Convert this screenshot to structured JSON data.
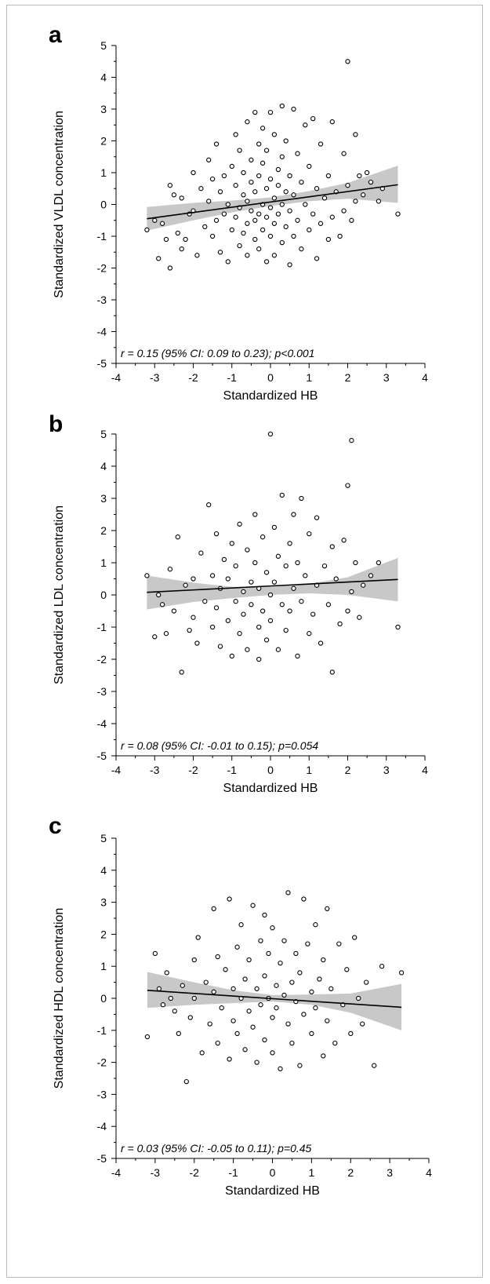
{
  "chart_data": [
    {
      "type": "scatter",
      "panel": "a",
      "xlabel": "Standardized HB",
      "ylabel": "Standardized VLDL concentration",
      "annotation": "r = 0.15 (95% CI: 0.09 to 0.23); p<0.001",
      "xlim": [
        -4,
        4
      ],
      "ylim": [
        -5,
        5
      ],
      "xticks": [
        -4,
        -3,
        -2,
        -1,
        0,
        1,
        2,
        3,
        4
      ],
      "yticks": [
        -5,
        -4,
        -3,
        -2,
        -1,
        0,
        1,
        2,
        3,
        4,
        5
      ],
      "fit": {
        "x": [
          -3.2,
          3.3
        ],
        "y": [
          -0.45,
          0.62
        ]
      },
      "ci": {
        "x": [
          -3.2,
          -2,
          -1,
          0,
          1,
          2,
          3.3
        ],
        "lower": [
          -0.82,
          -0.5,
          -0.25,
          -0.05,
          0.1,
          0.18,
          0.05
        ],
        "upper": [
          -0.08,
          0.05,
          0.12,
          0.22,
          0.42,
          0.68,
          1.22
        ]
      },
      "points": [
        [
          -3.2,
          -0.8
        ],
        [
          -3.0,
          -0.5
        ],
        [
          -2.9,
          -1.7
        ],
        [
          -2.8,
          -0.6
        ],
        [
          -2.7,
          -1.1
        ],
        [
          -2.6,
          -2.0
        ],
        [
          -2.6,
          0.6
        ],
        [
          -2.5,
          0.3
        ],
        [
          -2.4,
          -0.9
        ],
        [
          -2.3,
          0.2
        ],
        [
          -2.3,
          -1.4
        ],
        [
          -2.2,
          -1.1
        ],
        [
          -2.1,
          -0.3
        ],
        [
          -2.0,
          1.0
        ],
        [
          -2.0,
          -0.2
        ],
        [
          -1.9,
          -1.6
        ],
        [
          -1.8,
          0.5
        ],
        [
          -1.7,
          -0.7
        ],
        [
          -1.6,
          1.4
        ],
        [
          -1.6,
          0.1
        ],
        [
          -1.5,
          -1.0
        ],
        [
          -1.5,
          0.8
        ],
        [
          -1.4,
          1.9
        ],
        [
          -1.4,
          -0.5
        ],
        [
          -1.3,
          -1.5
        ],
        [
          -1.3,
          0.4
        ],
        [
          -1.2,
          -0.3
        ],
        [
          -1.2,
          0.9
        ],
        [
          -1.1,
          -1.8
        ],
        [
          -1.1,
          0.0
        ],
        [
          -1.0,
          1.2
        ],
        [
          -1.0,
          -0.8
        ],
        [
          -0.9,
          2.2
        ],
        [
          -0.9,
          -0.4
        ],
        [
          -0.9,
          0.6
        ],
        [
          -0.8,
          -1.3
        ],
        [
          -0.8,
          1.7
        ],
        [
          -0.8,
          -0.1
        ],
        [
          -0.7,
          0.3
        ],
        [
          -0.7,
          -0.9
        ],
        [
          -0.7,
          1.0
        ],
        [
          -0.6,
          2.6
        ],
        [
          -0.6,
          -0.6
        ],
        [
          -0.6,
          0.1
        ],
        [
          -0.6,
          -1.6
        ],
        [
          -0.5,
          1.4
        ],
        [
          -0.5,
          -0.2
        ],
        [
          -0.5,
          0.7
        ],
        [
          -0.4,
          2.9
        ],
        [
          -0.4,
          -1.1
        ],
        [
          -0.4,
          0.4
        ],
        [
          -0.4,
          -0.5
        ],
        [
          -0.3,
          1.9
        ],
        [
          -0.3,
          -0.3
        ],
        [
          -0.3,
          0.9
        ],
        [
          -0.3,
          -1.4
        ],
        [
          -0.2,
          2.4
        ],
        [
          -0.2,
          0.0
        ],
        [
          -0.2,
          -0.8
        ],
        [
          -0.2,
          1.3
        ],
        [
          -0.1,
          -1.8
        ],
        [
          -0.1,
          0.5
        ],
        [
          -0.1,
          -0.4
        ],
        [
          -0.1,
          1.7
        ],
        [
          0.0,
          2.9
        ],
        [
          0.0,
          -0.1
        ],
        [
          0.0,
          -1.0
        ],
        [
          0.0,
          0.8
        ],
        [
          0.1,
          2.2
        ],
        [
          0.1,
          0.2
        ],
        [
          0.1,
          -0.6
        ],
        [
          0.1,
          -1.6
        ],
        [
          0.2,
          1.1
        ],
        [
          0.2,
          -0.3
        ],
        [
          0.2,
          0.6
        ],
        [
          0.3,
          3.1
        ],
        [
          0.3,
          -1.2
        ],
        [
          0.3,
          0.0
        ],
        [
          0.3,
          1.5
        ],
        [
          0.4,
          -0.7
        ],
        [
          0.4,
          0.4
        ],
        [
          0.4,
          2.0
        ],
        [
          0.5,
          -1.9
        ],
        [
          0.5,
          0.9
        ],
        [
          0.5,
          -0.2
        ],
        [
          0.6,
          3.0
        ],
        [
          0.6,
          0.3
        ],
        [
          0.6,
          -1.0
        ],
        [
          0.7,
          1.6
        ],
        [
          0.7,
          -0.5
        ],
        [
          0.8,
          0.7
        ],
        [
          0.8,
          -1.4
        ],
        [
          0.9,
          2.5
        ],
        [
          0.9,
          0.0
        ],
        [
          1.0,
          -0.8
        ],
        [
          1.0,
          1.2
        ],
        [
          1.1,
          2.7
        ],
        [
          1.1,
          -0.3
        ],
        [
          1.2,
          0.5
        ],
        [
          1.2,
          -1.7
        ],
        [
          1.3,
          1.9
        ],
        [
          1.3,
          -0.6
        ],
        [
          1.4,
          0.2
        ],
        [
          1.5,
          -1.1
        ],
        [
          1.5,
          0.9
        ],
        [
          1.6,
          2.6
        ],
        [
          1.6,
          -0.4
        ],
        [
          1.7,
          0.4
        ],
        [
          1.8,
          -1.0
        ],
        [
          1.9,
          1.6
        ],
        [
          1.9,
          -0.2
        ],
        [
          2.0,
          0.6
        ],
        [
          2.0,
          4.5
        ],
        [
          2.1,
          -0.5
        ],
        [
          2.2,
          2.2
        ],
        [
          2.2,
          0.1
        ],
        [
          2.3,
          0.9
        ],
        [
          2.4,
          0.3
        ],
        [
          2.5,
          1.0
        ],
        [
          2.6,
          0.7
        ],
        [
          2.8,
          0.1
        ],
        [
          2.9,
          0.5
        ],
        [
          3.3,
          -0.3
        ]
      ]
    },
    {
      "type": "scatter",
      "panel": "b",
      "xlabel": "Standardized HB",
      "ylabel": "Standardized LDL concentration",
      "annotation": "r = 0.08 (95% CI: -0.01 to 0.15); p=0.054",
      "xlim": [
        -4,
        4
      ],
      "ylim": [
        -5,
        5
      ],
      "xticks": [
        -4,
        -3,
        -2,
        -1,
        0,
        1,
        2,
        3,
        4
      ],
      "yticks": [
        -5,
        -4,
        -3,
        -2,
        -1,
        0,
        1,
        2,
        3,
        4,
        5
      ],
      "fit": {
        "x": [
          -3.2,
          3.3
        ],
        "y": [
          0.08,
          0.48
        ]
      },
      "ci": {
        "x": [
          -3.2,
          -2,
          -1,
          0,
          1,
          2,
          3.3
        ],
        "lower": [
          -0.45,
          -0.22,
          -0.1,
          0.0,
          0.05,
          0.0,
          -0.2
        ],
        "upper": [
          0.6,
          0.38,
          0.25,
          0.25,
          0.35,
          0.55,
          1.15
        ]
      },
      "points": [
        [
          -3.2,
          0.6
        ],
        [
          -3.0,
          -1.3
        ],
        [
          -2.9,
          0.0
        ],
        [
          -2.8,
          -0.3
        ],
        [
          -2.7,
          -1.2
        ],
        [
          -2.6,
          0.8
        ],
        [
          -2.5,
          -0.5
        ],
        [
          -2.4,
          1.8
        ],
        [
          -2.3,
          -2.4
        ],
        [
          -2.2,
          0.3
        ],
        [
          -2.1,
          -1.1
        ],
        [
          -2.0,
          -0.7
        ],
        [
          -2.0,
          0.5
        ],
        [
          -1.9,
          -1.5
        ],
        [
          -1.8,
          1.3
        ],
        [
          -1.7,
          -0.2
        ],
        [
          -1.6,
          2.8
        ],
        [
          -1.5,
          -1.0
        ],
        [
          -1.5,
          0.6
        ],
        [
          -1.4,
          1.9
        ],
        [
          -1.4,
          -0.4
        ],
        [
          -1.3,
          -1.6
        ],
        [
          -1.3,
          0.2
        ],
        [
          -1.2,
          1.1
        ],
        [
          -1.1,
          -0.8
        ],
        [
          -1.1,
          0.5
        ],
        [
          -1.0,
          -1.9
        ],
        [
          -1.0,
          1.6
        ],
        [
          -0.9,
          -0.2
        ],
        [
          -0.9,
          0.9
        ],
        [
          -0.8,
          -1.2
        ],
        [
          -0.8,
          2.2
        ],
        [
          -0.7,
          0.1
        ],
        [
          -0.7,
          -0.6
        ],
        [
          -0.6,
          1.4
        ],
        [
          -0.6,
          -1.7
        ],
        [
          -0.5,
          0.4
        ],
        [
          -0.5,
          -0.3
        ],
        [
          -0.4,
          1.0
        ],
        [
          -0.4,
          2.5
        ],
        [
          -0.3,
          -1.0
        ],
        [
          -0.3,
          0.2
        ],
        [
          -0.3,
          -2.0
        ],
        [
          -0.2,
          1.8
        ],
        [
          -0.2,
          -0.5
        ],
        [
          -0.1,
          0.7
        ],
        [
          -0.1,
          -1.4
        ],
        [
          0.0,
          5.0
        ],
        [
          0.0,
          0.0
        ],
        [
          0.0,
          -0.8
        ],
        [
          0.1,
          2.1
        ],
        [
          0.1,
          0.4
        ],
        [
          0.2,
          -1.7
        ],
        [
          0.2,
          1.2
        ],
        [
          0.3,
          -0.3
        ],
        [
          0.3,
          3.1
        ],
        [
          0.4,
          0.9
        ],
        [
          0.4,
          -1.1
        ],
        [
          0.5,
          1.6
        ],
        [
          0.5,
          -0.5
        ],
        [
          0.6,
          2.5
        ],
        [
          0.6,
          0.2
        ],
        [
          0.7,
          -1.9
        ],
        [
          0.7,
          1.0
        ],
        [
          0.8,
          3.0
        ],
        [
          0.8,
          -0.2
        ],
        [
          0.9,
          0.6
        ],
        [
          1.0,
          -1.2
        ],
        [
          1.0,
          1.9
        ],
        [
          1.1,
          -0.6
        ],
        [
          1.2,
          2.4
        ],
        [
          1.2,
          0.3
        ],
        [
          1.3,
          -1.5
        ],
        [
          1.4,
          0.9
        ],
        [
          1.5,
          -0.3
        ],
        [
          1.6,
          1.5
        ],
        [
          1.6,
          -2.4
        ],
        [
          1.7,
          0.5
        ],
        [
          1.8,
          -0.9
        ],
        [
          1.9,
          1.7
        ],
        [
          2.0,
          3.4
        ],
        [
          2.0,
          -0.5
        ],
        [
          2.1,
          4.8
        ],
        [
          2.1,
          0.1
        ],
        [
          2.2,
          1.0
        ],
        [
          2.3,
          -0.7
        ],
        [
          2.4,
          0.3
        ],
        [
          2.6,
          0.6
        ],
        [
          2.8,
          1.0
        ],
        [
          3.3,
          -1.0
        ]
      ]
    },
    {
      "type": "scatter",
      "panel": "c",
      "xlabel": "Standardized HB",
      "ylabel": "Standardized HDL concentration",
      "annotation": "r = 0.03 (95% CI: -0.05 to 0.11); p=0.45",
      "xlim": [
        -4,
        4
      ],
      "ylim": [
        -5,
        5
      ],
      "xticks": [
        -4,
        -3,
        -2,
        -1,
        0,
        1,
        2,
        3,
        4
      ],
      "yticks": [
        -5,
        -4,
        -3,
        -2,
        -1,
        0,
        1,
        2,
        3,
        4,
        5
      ],
      "fit": {
        "x": [
          -3.2,
          3.3
        ],
        "y": [
          0.25,
          -0.28
        ]
      },
      "ci": {
        "x": [
          -3.2,
          -2,
          -1,
          0,
          1,
          2,
          3.3
        ],
        "lower": [
          -0.3,
          -0.2,
          -0.15,
          -0.1,
          -0.2,
          -0.45,
          -1.0
        ],
        "upper": [
          0.82,
          0.5,
          0.25,
          0.1,
          0.12,
          0.15,
          0.45
        ]
      },
      "points": [
        [
          -3.2,
          -1.2
        ],
        [
          -3.0,
          1.4
        ],
        [
          -2.9,
          0.3
        ],
        [
          -2.8,
          -0.2
        ],
        [
          -2.7,
          0.8
        ],
        [
          -2.6,
          0.0
        ],
        [
          -2.5,
          -0.4
        ],
        [
          -2.4,
          -1.1
        ],
        [
          -2.3,
          0.4
        ],
        [
          -2.2,
          -2.6
        ],
        [
          -2.1,
          -0.6
        ],
        [
          -2.0,
          1.2
        ],
        [
          -2.0,
          0.0
        ],
        [
          -1.9,
          1.9
        ],
        [
          -1.8,
          -1.7
        ],
        [
          -1.7,
          0.5
        ],
        [
          -1.6,
          -0.8
        ],
        [
          -1.5,
          2.8
        ],
        [
          -1.5,
          0.2
        ],
        [
          -1.4,
          -1.4
        ],
        [
          -1.4,
          1.3
        ],
        [
          -1.3,
          -0.3
        ],
        [
          -1.2,
          0.9
        ],
        [
          -1.1,
          -1.9
        ],
        [
          -1.1,
          3.1
        ],
        [
          -1.0,
          0.3
        ],
        [
          -1.0,
          -0.7
        ],
        [
          -0.9,
          1.6
        ],
        [
          -0.9,
          -1.1
        ],
        [
          -0.8,
          0.0
        ],
        [
          -0.8,
          2.3
        ],
        [
          -0.7,
          -1.6
        ],
        [
          -0.7,
          0.6
        ],
        [
          -0.6,
          -0.4
        ],
        [
          -0.6,
          1.2
        ],
        [
          -0.5,
          2.9
        ],
        [
          -0.5,
          -0.9
        ],
        [
          -0.4,
          0.3
        ],
        [
          -0.4,
          -2.0
        ],
        [
          -0.3,
          1.8
        ],
        [
          -0.3,
          -0.2
        ],
        [
          -0.2,
          2.6
        ],
        [
          -0.2,
          0.7
        ],
        [
          -0.2,
          -1.3
        ],
        [
          -0.1,
          0.0
        ],
        [
          -0.1,
          1.4
        ],
        [
          0.0,
          -0.6
        ],
        [
          0.0,
          2.2
        ],
        [
          0.0,
          -1.7
        ],
        [
          0.1,
          0.4
        ],
        [
          0.1,
          -0.3
        ],
        [
          0.2,
          1.1
        ],
        [
          0.2,
          -2.2
        ],
        [
          0.3,
          0.1
        ],
        [
          0.3,
          1.8
        ],
        [
          0.4,
          -0.8
        ],
        [
          0.4,
          3.3
        ],
        [
          0.5,
          0.5
        ],
        [
          0.5,
          -1.4
        ],
        [
          0.6,
          1.4
        ],
        [
          0.6,
          -0.1
        ],
        [
          0.7,
          -2.1
        ],
        [
          0.7,
          0.8
        ],
        [
          0.8,
          3.1
        ],
        [
          0.8,
          -0.5
        ],
        [
          0.9,
          1.7
        ],
        [
          1.0,
          0.2
        ],
        [
          1.0,
          -1.1
        ],
        [
          1.1,
          2.3
        ],
        [
          1.1,
          -0.3
        ],
        [
          1.2,
          0.6
        ],
        [
          1.3,
          -1.8
        ],
        [
          1.3,
          1.2
        ],
        [
          1.4,
          2.8
        ],
        [
          1.4,
          -0.7
        ],
        [
          1.5,
          0.3
        ],
        [
          1.6,
          -1.4
        ],
        [
          1.7,
          1.7
        ],
        [
          1.8,
          -0.2
        ],
        [
          1.9,
          0.9
        ],
        [
          2.0,
          -1.1
        ],
        [
          2.1,
          1.9
        ],
        [
          2.2,
          0.0
        ],
        [
          2.3,
          -0.8
        ],
        [
          2.4,
          0.5
        ],
        [
          2.6,
          -2.1
        ],
        [
          2.8,
          1.0
        ],
        [
          3.3,
          0.8
        ]
      ]
    }
  ]
}
